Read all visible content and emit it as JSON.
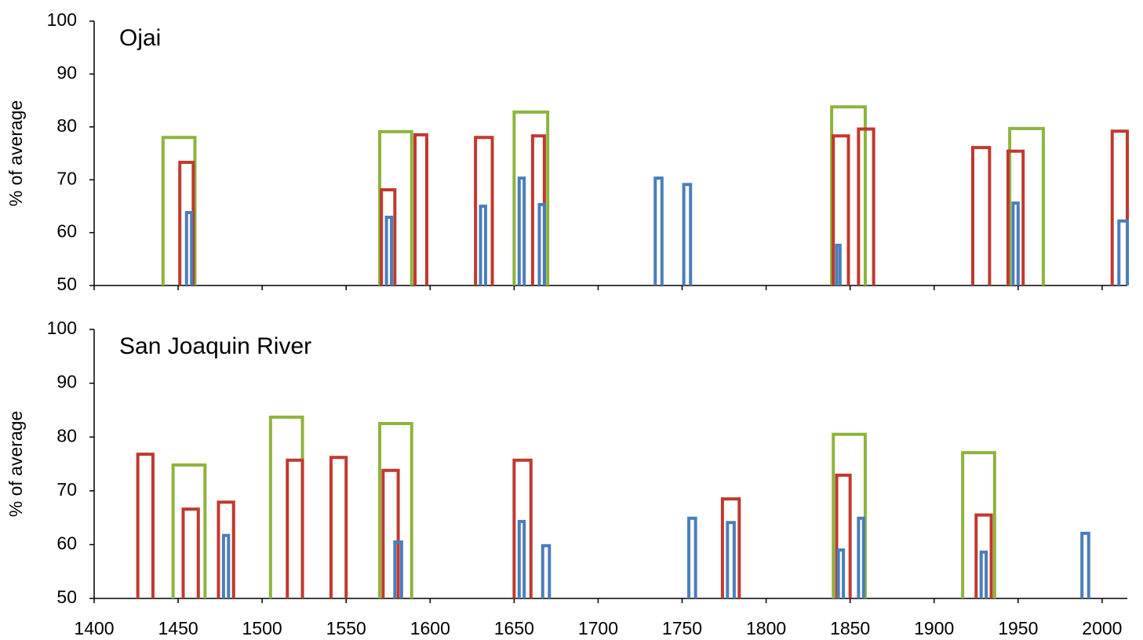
{
  "chart_data": [
    {
      "type": "bar",
      "title": "Ojai",
      "ylabel": "% of average",
      "xlim": [
        1400,
        2015
      ],
      "ylim": [
        50,
        100
      ],
      "yticks": [
        50,
        60,
        70,
        80,
        90,
        100
      ],
      "series": [
        {
          "color": "#8db43e",
          "x_start": [
            1441,
            1570,
            1650,
            1839,
            1945
          ],
          "x_end": [
            1460,
            1589,
            1670,
            1859,
            1965
          ],
          "values": [
            78,
            79.1,
            82.8,
            83.8,
            79.7
          ]
        },
        {
          "color": "#c0392f",
          "x_start": [
            1451,
            1571,
            1591,
            1627,
            1661,
            1840,
            1855,
            1923,
            1944,
            2006
          ],
          "x_end": [
            1459,
            1579,
            1598,
            1637,
            1668,
            1849,
            1864,
            1933,
            1953,
            2015
          ],
          "values": [
            73.3,
            68.1,
            78.5,
            78,
            78.3,
            78.3,
            79.6,
            76.1,
            75.4,
            79.2
          ]
        },
        {
          "color": "#4a7ebb",
          "x_start": [
            1455,
            1574,
            1630,
            1653,
            1665,
            1734,
            1751,
            1842,
            1947,
            2010
          ],
          "x_end": [
            1458,
            1577,
            1633,
            1656,
            1668,
            1738,
            1755,
            1844,
            1950,
            2015
          ],
          "values": [
            63.8,
            62.9,
            65,
            70.3,
            65.3,
            70.3,
            69.1,
            57.6,
            65.6,
            62.2
          ]
        }
      ]
    },
    {
      "type": "bar",
      "title": "San Joaquin River",
      "ylabel": "% of average",
      "xlim": [
        1400,
        2015
      ],
      "ylim": [
        50,
        100
      ],
      "yticks": [
        50,
        60,
        70,
        80,
        90,
        100
      ],
      "xticks": [
        1400,
        1450,
        1500,
        1550,
        1600,
        1650,
        1700,
        1750,
        1800,
        1850,
        1900,
        1950,
        2000
      ],
      "series": [
        {
          "color": "#8db43e",
          "x_start": [
            1447,
            1505,
            1570,
            1840,
            1917
          ],
          "x_end": [
            1466,
            1524,
            1589,
            1859,
            1936
          ],
          "values": [
            74.8,
            83.7,
            82.5,
            80.5,
            77.1
          ]
        },
        {
          "color": "#c0392f",
          "x_start": [
            1426,
            1453,
            1474,
            1515,
            1541,
            1572,
            1650,
            1774,
            1842,
            1925
          ],
          "x_end": [
            1435,
            1462,
            1483,
            1524,
            1550,
            1581,
            1660,
            1784,
            1850,
            1934
          ],
          "values": [
            76.8,
            66.6,
            67.9,
            75.7,
            76.2,
            73.8,
            75.7,
            68.5,
            72.9,
            65.5
          ]
        },
        {
          "color": "#4a7ebb",
          "x_start": [
            1477,
            1579,
            1653,
            1667,
            1754,
            1777,
            1843,
            1855,
            1928,
            1988
          ],
          "x_end": [
            1480,
            1583,
            1656,
            1671,
            1758,
            1781,
            1846,
            1858,
            1931,
            1992
          ],
          "values": [
            61.7,
            60.5,
            64.3,
            59.8,
            64.9,
            64.1,
            59,
            64.9,
            58.6,
            62.1
          ]
        }
      ]
    }
  ]
}
